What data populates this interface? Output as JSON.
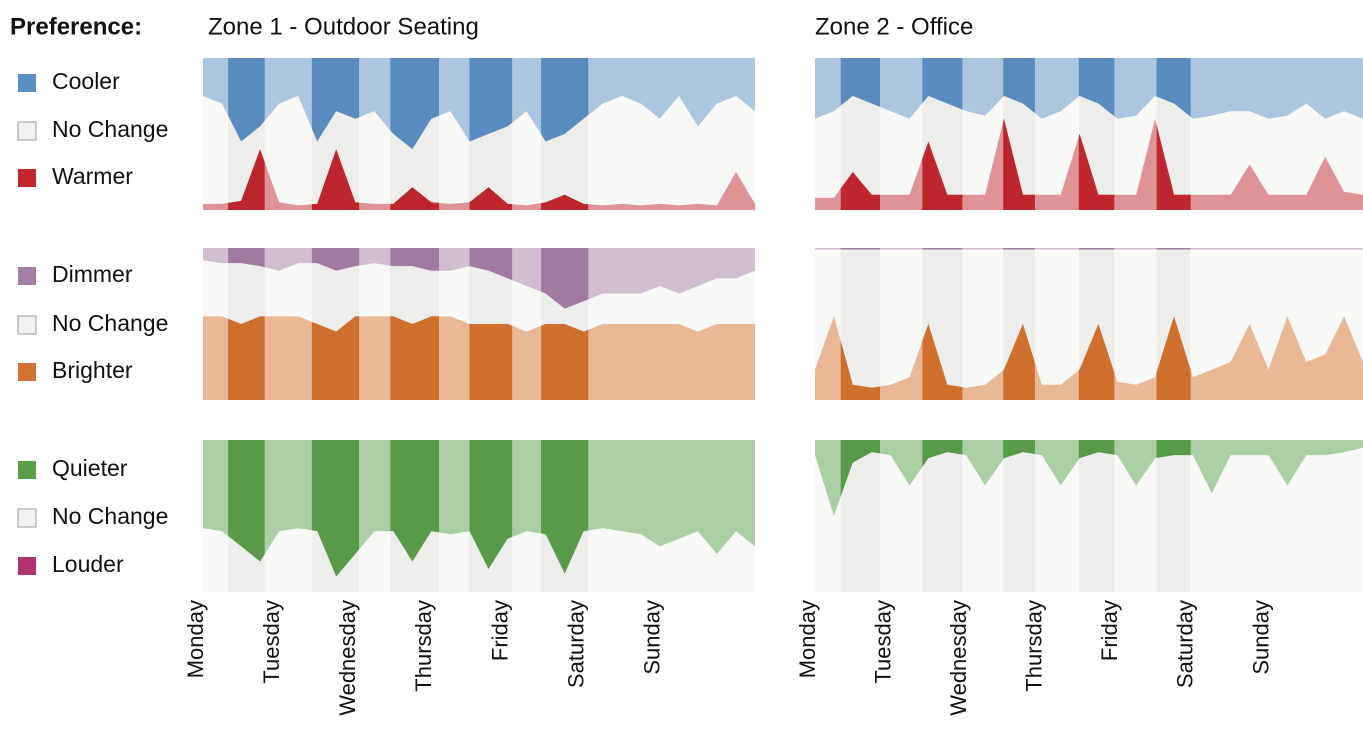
{
  "legend_title": "Preference:",
  "chart_data": [
    {
      "type": "stacked-area",
      "title": "Zone 1 - Outdoor Seating",
      "x": [
        0,
        0.25,
        0.5,
        0.75,
        1,
        1.25,
        1.5,
        1.75,
        2,
        2.25,
        2.5,
        2.75,
        3,
        3.25,
        3.5,
        3.75,
        4,
        4.25,
        4.5,
        4.75,
        5,
        5.25,
        5.5,
        5.75,
        6,
        6.25,
        6.5,
        6.75,
        7,
        7.25
      ],
      "xlim": [
        0,
        7.25
      ],
      "ylim": [
        0,
        100
      ],
      "xticks": [
        {
          "value": 0,
          "label": "Monday"
        },
        {
          "value": 1,
          "label": "Tuesday"
        },
        {
          "value": 2,
          "label": "Wednesday"
        },
        {
          "value": 3,
          "label": "Thursday"
        },
        {
          "value": 4,
          "label": "Friday"
        },
        {
          "value": 5,
          "label": "Saturday"
        },
        {
          "value": 6,
          "label": "Sunday"
        }
      ],
      "highlights": [
        [
          0.33,
          0.81
        ],
        [
          1.43,
          2.05
        ],
        [
          2.46,
          3.1
        ],
        [
          3.5,
          4.06
        ],
        [
          4.44,
          5.06
        ]
      ],
      "panels": [
        {
          "series": [
            {
              "name": "Cooler",
              "color": "#5b8ec2",
              "values": [
                25,
                30,
                55,
                45,
                30,
                25,
                55,
                35,
                40,
                35,
                50,
                60,
                40,
                35,
                55,
                50,
                45,
                35,
                55,
                50,
                40,
                30,
                25,
                30,
                40,
                25,
                45,
                30,
                25,
                35
              ]
            },
            {
              "name": "No Change",
              "color": "#f2f2f0",
              "values": [
                71,
                66,
                39,
                15,
                65,
                72,
                41,
                25,
                55,
                61,
                46,
                25,
                55,
                61,
                40,
                35,
                51,
                62,
                40,
                40,
                56,
                67,
                71,
                67,
                56,
                72,
                51,
                67,
                50,
                61
              ]
            },
            {
              "name": "Warmer",
              "color": "#c1272d",
              "values": [
                4,
                4,
                6,
                40,
                5,
                3,
                4,
                40,
                5,
                4,
                4,
                15,
                5,
                4,
                5,
                15,
                4,
                3,
                5,
                10,
                4,
                3,
                4,
                3,
                4,
                3,
                4,
                3,
                25,
                4
              ]
            }
          ]
        },
        {
          "series": [
            {
              "name": "Dimmer",
              "color": "#a57ea3",
              "values": [
                8,
                10,
                10,
                12,
                15,
                10,
                10,
                15,
                12,
                10,
                12,
                12,
                15,
                15,
                12,
                15,
                20,
                25,
                30,
                40,
                35,
                30,
                30,
                30,
                25,
                30,
                25,
                20,
                20,
                15
              ]
            },
            {
              "name": "No Change",
              "color": "#f2f2f0",
              "values": [
                37,
                35,
                40,
                33,
                30,
                35,
                40,
                40,
                33,
                35,
                33,
                38,
                30,
                30,
                38,
                35,
                30,
                30,
                20,
                10,
                20,
                20,
                20,
                20,
                25,
                20,
                30,
                30,
                30,
                35
              ]
            },
            {
              "name": "Brighter",
              "color": "#d3722f",
              "values": [
                55,
                55,
                50,
                55,
                55,
                55,
                50,
                45,
                55,
                55,
                55,
                50,
                55,
                55,
                50,
                50,
                50,
                45,
                50,
                50,
                45,
                50,
                50,
                50,
                50,
                50,
                45,
                50,
                50,
                50
              ]
            }
          ]
        },
        {
          "series": [
            {
              "name": "Quieter",
              "color": "#5a9e4c",
              "values": [
                58,
                60,
                70,
                80,
                60,
                58,
                60,
                90,
                75,
                60,
                60,
                80,
                60,
                62,
                60,
                85,
                65,
                60,
                62,
                88,
                60,
                58,
                60,
                62,
                70,
                65,
                60,
                75,
                60,
                70
              ]
            },
            {
              "name": "No Change",
              "color": "#f2f2f0",
              "values": [
                42,
                40,
                30,
                20,
                40,
                42,
                40,
                10,
                25,
                40,
                40,
                20,
                40,
                38,
                40,
                15,
                35,
                40,
                38,
                12,
                40,
                42,
                40,
                38,
                30,
                35,
                40,
                25,
                40,
                30
              ]
            },
            {
              "name": "Louder",
              "color": "#b2326f",
              "values": [
                0,
                0,
                0,
                0,
                0,
                0,
                0,
                0,
                0,
                0,
                0,
                0,
                0,
                0,
                0,
                0,
                0,
                0,
                0,
                0,
                0,
                0,
                0,
                0,
                0,
                0,
                0,
                0,
                0,
                0
              ]
            }
          ]
        }
      ]
    },
    {
      "type": "stacked-area",
      "title": "Zone 2 - Office",
      "x": [
        0,
        0.25,
        0.5,
        0.75,
        1,
        1.25,
        1.5,
        1.75,
        2,
        2.25,
        2.5,
        2.75,
        3,
        3.25,
        3.5,
        3.75,
        4,
        4.25,
        4.5,
        4.75,
        5,
        5.25,
        5.5,
        5.75,
        6,
        6.25,
        6.5,
        6.75,
        7,
        7.25
      ],
      "xlim": [
        0,
        7.25
      ],
      "ylim": [
        0,
        100
      ],
      "xticks": [
        {
          "value": 0,
          "label": "Monday"
        },
        {
          "value": 1,
          "label": "Tuesday"
        },
        {
          "value": 2,
          "label": "Wednesday"
        },
        {
          "value": 3,
          "label": "Thursday"
        },
        {
          "value": 4,
          "label": "Friday"
        },
        {
          "value": 5,
          "label": "Saturday"
        },
        {
          "value": 6,
          "label": "Sunday"
        }
      ],
      "highlights": [
        [
          0.34,
          0.86
        ],
        [
          1.42,
          1.95
        ],
        [
          2.49,
          2.91
        ],
        [
          3.49,
          3.96
        ],
        [
          4.52,
          4.97
        ]
      ],
      "panels": [
        {
          "series": [
            {
              "color": "#5b8ec2",
              "values": [
                40,
                35,
                25,
                30,
                35,
                40,
                25,
                30,
                35,
                38,
                25,
                30,
                40,
                35,
                25,
                30,
                40,
                38,
                25,
                30,
                40,
                38,
                35,
                35,
                40,
                38,
                30,
                40,
                35,
                40
              ]
            },
            {
              "color": "#f2f2f0",
              "values": [
                52,
                57,
                50,
                60,
                55,
                50,
                30,
                60,
                55,
                52,
                15,
                60,
                50,
                55,
                25,
                60,
                50,
                52,
                15,
                60,
                50,
                52,
                55,
                35,
                50,
                52,
                60,
                25,
                53,
                50
              ]
            },
            {
              "color": "#c1272d",
              "values": [
                8,
                8,
                25,
                10,
                10,
                10,
                45,
                10,
                10,
                10,
                60,
                10,
                10,
                10,
                50,
                10,
                10,
                10,
                60,
                10,
                10,
                10,
                10,
                30,
                10,
                10,
                10,
                35,
                12,
                10
              ]
            }
          ]
        },
        {
          "series": [
            {
              "color": "#a57ea3",
              "values": [
                1,
                1,
                1,
                1,
                1,
                1,
                1,
                1,
                1,
                1,
                1,
                1,
                1,
                1,
                1,
                1,
                1,
                1,
                1,
                1,
                1,
                1,
                1,
                1,
                1,
                1,
                1,
                1,
                1,
                1
              ]
            },
            {
              "color": "#f2f2f0",
              "values": [
                79,
                44,
                89,
                91,
                89,
                84,
                49,
                89,
                91,
                89,
                79,
                49,
                89,
                89,
                79,
                49,
                87,
                89,
                84,
                44,
                84,
                79,
                74,
                49,
                79,
                44,
                74,
                69,
                44,
                74
              ]
            },
            {
              "color": "#d3722f",
              "values": [
                20,
                55,
                10,
                8,
                10,
                15,
                50,
                10,
                8,
                10,
                20,
                50,
                10,
                10,
                20,
                50,
                12,
                10,
                15,
                55,
                15,
                20,
                25,
                50,
                20,
                55,
                25,
                30,
                55,
                25
              ]
            }
          ]
        },
        {
          "series": [
            {
              "color": "#5a9e4c",
              "values": [
                10,
                50,
                15,
                8,
                10,
                30,
                12,
                8,
                10,
                30,
                12,
                8,
                10,
                30,
                12,
                8,
                10,
                30,
                12,
                10,
                10,
                35,
                10,
                10,
                10,
                30,
                10,
                10,
                8,
                5
              ]
            },
            {
              "color": "#f2f2f0",
              "values": [
                90,
                50,
                85,
                92,
                90,
                70,
                88,
                92,
                90,
                70,
                88,
                92,
                90,
                70,
                88,
                92,
                90,
                70,
                88,
                90,
                90,
                65,
                90,
                90,
                90,
                70,
                90,
                90,
                92,
                95
              ]
            },
            {
              "color": "#b2326f",
              "values": [
                0,
                0,
                0,
                0,
                0,
                0,
                0,
                0,
                0,
                0,
                0,
                0,
                0,
                0,
                0,
                0,
                0,
                0,
                0,
                0,
                0,
                0,
                0,
                0,
                0,
                0,
                0,
                0,
                0,
                0
              ]
            }
          ]
        }
      ]
    }
  ]
}
